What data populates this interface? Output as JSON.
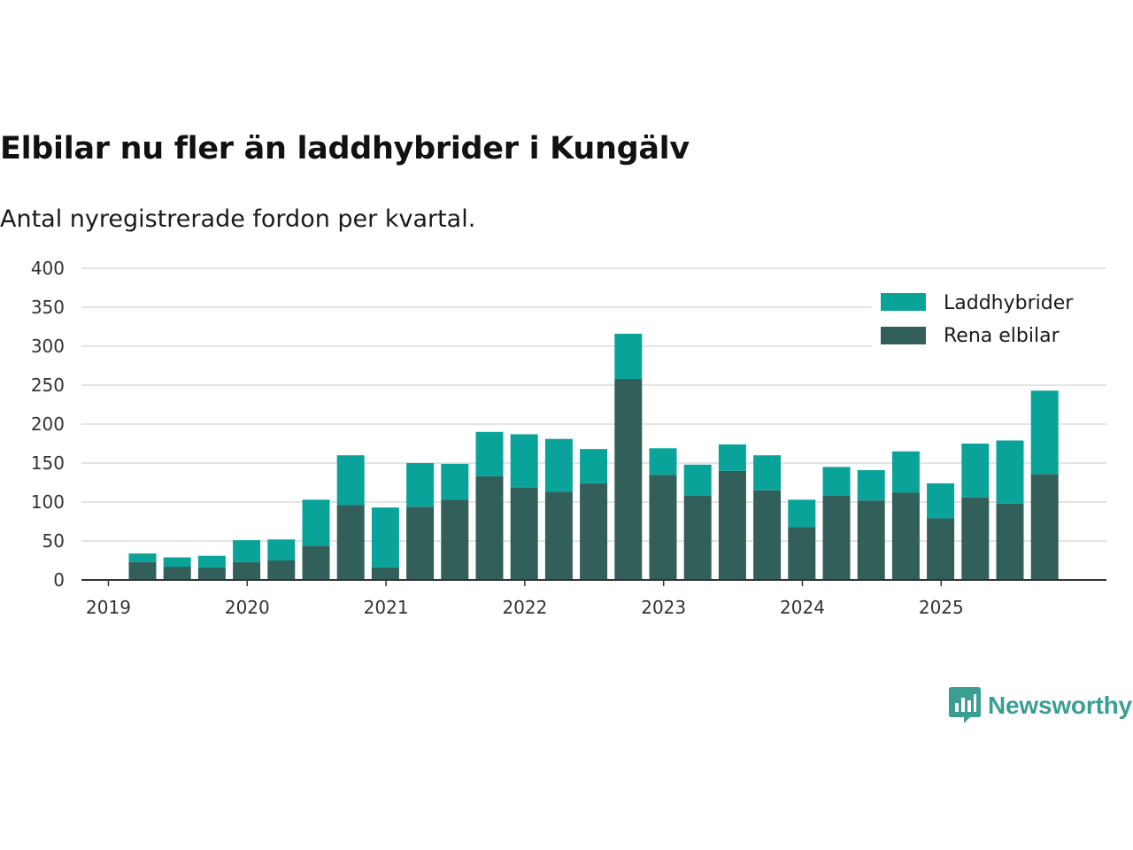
{
  "title": "Elbilar nu fler än laddhybrider i Kungälv",
  "subtitle": "Antal nyregistrerade fordon per kvartal.",
  "brand": {
    "name": "Newsworthy",
    "color": "#3a9e91"
  },
  "chart_data": {
    "type": "bar",
    "stacked": true,
    "title": "Elbilar nu fler än laddhybrider i Kungälv",
    "subtitle": "Antal nyregistrerade fordon per kvartal.",
    "xlabel": "",
    "ylabel": "",
    "ylim": [
      0,
      400
    ],
    "yticks": [
      0,
      50,
      100,
      150,
      200,
      250,
      300,
      350,
      400
    ],
    "grid": true,
    "legend": "top-right",
    "year_labels": [
      "2019",
      "2020",
      "2021",
      "2022",
      "2023",
      "2024",
      "2025"
    ],
    "categories": [
      "2019 Q2",
      "2019 Q3",
      "2019 Q4",
      "2020 Q1",
      "2020 Q2",
      "2020 Q3",
      "2020 Q4",
      "2021 Q1",
      "2021 Q2",
      "2021 Q3",
      "2021 Q4",
      "2022 Q1",
      "2022 Q2",
      "2022 Q3",
      "2022 Q4",
      "2023 Q1",
      "2023 Q2",
      "2023 Q3",
      "2023 Q4",
      "2024 Q1",
      "2024 Q2",
      "2024 Q3",
      "2024 Q4",
      "2025 Q1",
      "2025 Q2",
      "2025 Q3",
      "2025 Q4"
    ],
    "series": [
      {
        "name": "Rena elbilar",
        "color": "#335f5b",
        "values": [
          23,
          17,
          16,
          23,
          25,
          44,
          96,
          16,
          94,
          103,
          133,
          119,
          113,
          124,
          258,
          135,
          108,
          140,
          115,
          68,
          108,
          102,
          112,
          79,
          106,
          98,
          136
        ]
      },
      {
        "name": "Laddhybrider",
        "color": "#0aa39a",
        "values": [
          11,
          12,
          15,
          28,
          27,
          59,
          64,
          77,
          56,
          46,
          57,
          68,
          68,
          44,
          58,
          34,
          40,
          34,
          45,
          35,
          37,
          39,
          53,
          45,
          69,
          81,
          107
        ]
      }
    ]
  }
}
